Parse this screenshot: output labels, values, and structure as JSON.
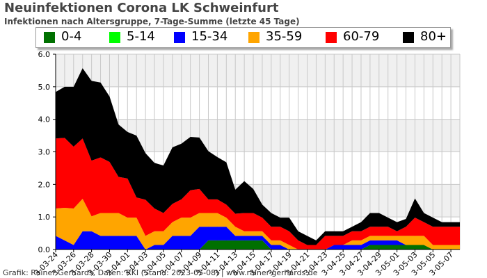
{
  "chart_data": {
    "type": "area",
    "stacked": true,
    "title": "Neuinfektionen Corona LK Schweinfurt",
    "subtitle": "Infektionen nach Altersgruppe, 7-Tage-Summe (letzte 45 Tage)",
    "credit": "Grafik: Rainer Gerhards, Daten: RKI (Stand: 2023-05-08) | www.rainer-gerhards.de",
    "ylim": [
      0,
      6
    ],
    "yticks": [
      "0.0",
      "1.0",
      "2.0",
      "3.0",
      "4.0",
      "5.0",
      "6.0"
    ],
    "ytick_values": [
      0,
      1,
      2,
      3,
      4,
      5,
      6
    ],
    "grid": true,
    "legend_position": "top",
    "x_labels": [
      "2023-03-24",
      "2023-03-26",
      "2023-03-28",
      "2023-03-30",
      "2023-04-01",
      "2023-04-03",
      "2023-04-05",
      "2023-04-07",
      "2023-04-09",
      "2023-04-11",
      "2023-04-13",
      "2023-04-15",
      "2023-04-17",
      "2023-04-19",
      "2023-04-21",
      "2023-04-23",
      "2023-04-25",
      "2023-04-27",
      "2023-04-29",
      "2023-05-01",
      "2023-05-03",
      "2023-05-05",
      "2023-05-07"
    ],
    "x_label_display": [
      "3-03-24",
      "3-03-26",
      "3-03-28",
      "3-03-30",
      "3-04-01",
      "3-04-03",
      "3-04-05",
      "3-04-07",
      "3-04-09",
      "3-04-11",
      "3-04-13",
      "3-04-15",
      "3-04-17",
      "3-04-19",
      "3-04-21",
      "3-04-23",
      "3-04-25",
      "3-04-27",
      "3-04-29",
      "3-05-01",
      "3-05-03",
      "3-05-05",
      "3-05-07"
    ],
    "x": [
      "2023-03-24",
      "2023-03-25",
      "2023-03-26",
      "2023-03-27",
      "2023-03-28",
      "2023-03-29",
      "2023-03-30",
      "2023-03-31",
      "2023-04-01",
      "2023-04-02",
      "2023-04-03",
      "2023-04-04",
      "2023-04-05",
      "2023-04-06",
      "2023-04-07",
      "2023-04-08",
      "2023-04-09",
      "2023-04-10",
      "2023-04-11",
      "2023-04-12",
      "2023-04-13",
      "2023-04-14",
      "2023-04-15",
      "2023-04-16",
      "2023-04-17",
      "2023-04-18",
      "2023-04-19",
      "2023-04-20",
      "2023-04-21",
      "2023-04-22",
      "2023-04-23",
      "2023-04-24",
      "2023-04-25",
      "2023-04-26",
      "2023-04-27",
      "2023-04-28",
      "2023-04-29",
      "2023-04-30",
      "2023-05-01",
      "2023-05-02",
      "2023-05-03",
      "2023-05-04",
      "2023-05-05",
      "2023-05-06",
      "2023-05-07",
      "2023-05-08"
    ],
    "series": [
      {
        "name": "0-4",
        "color": "#007000",
        "values": [
          0,
          0,
          0,
          0,
          0,
          0,
          0,
          0,
          0,
          0,
          0,
          0,
          0,
          0,
          0,
          0,
          0,
          0.28,
          0.28,
          0.28,
          0.28,
          0.28,
          0.28,
          0.28,
          0,
          0,
          0,
          0,
          0,
          0,
          0,
          0,
          0,
          0,
          0,
          0.14,
          0.14,
          0.14,
          0.14,
          0.14,
          0.14,
          0.14,
          0,
          0,
          0,
          0
        ]
      },
      {
        "name": "5-14",
        "color": "#00ff00",
        "values": [
          0,
          0,
          0,
          0,
          0,
          0,
          0,
          0,
          0,
          0,
          0,
          0,
          0,
          0,
          0,
          0,
          0,
          0,
          0,
          0,
          0,
          0,
          0,
          0,
          0,
          0,
          0,
          0,
          0,
          0,
          0,
          0,
          0,
          0,
          0,
          0,
          0,
          0,
          0,
          0,
          0,
          0,
          0,
          0,
          0,
          0
        ]
      },
      {
        "name": "15-34",
        "color": "#0000ff",
        "values": [
          0.42,
          0.28,
          0.14,
          0.56,
          0.56,
          0.42,
          0.42,
          0.42,
          0.42,
          0.42,
          0,
          0.14,
          0.14,
          0.42,
          0.42,
          0.42,
          0.7,
          0.42,
          0.42,
          0.42,
          0.14,
          0.14,
          0.14,
          0.14,
          0.14,
          0.14,
          0,
          0,
          0,
          0,
          0,
          0.14,
          0.14,
          0.14,
          0.14,
          0.14,
          0.14,
          0.14,
          0.14,
          0,
          0,
          0,
          0,
          0,
          0,
          0
        ]
      },
      {
        "name": "35-59",
        "color": "#ffa500",
        "values": [
          0.84,
          1.0,
          1.12,
          1.0,
          0.46,
          0.7,
          0.7,
          0.7,
          0.56,
          0.56,
          0.42,
          0.42,
          0.42,
          0.42,
          0.56,
          0.56,
          0.42,
          0.42,
          0.42,
          0.28,
          0.28,
          0.14,
          0.14,
          0.14,
          0.14,
          0.14,
          0.14,
          0,
          0,
          0,
          0,
          0,
          0,
          0.14,
          0.14,
          0.14,
          0.14,
          0.14,
          0.14,
          0.28,
          0.28,
          0.28,
          0.14,
          0.14,
          0.14,
          0.14
        ]
      },
      {
        "name": "60-79",
        "color": "#ff0000",
        "values": [
          2.15,
          2.15,
          1.9,
          1.85,
          1.71,
          1.71,
          1.57,
          1.11,
          1.2,
          0.62,
          1.11,
          0.7,
          0.56,
          0.56,
          0.56,
          0.84,
          0.74,
          0.42,
          0.42,
          0.4,
          0.4,
          0.56,
          0.56,
          0.42,
          0.42,
          0.42,
          0.42,
          0.28,
          0.14,
          0.14,
          0.42,
          0.28,
          0.28,
          0.28,
          0.28,
          0.28,
          0.28,
          0.28,
          0.14,
          0.28,
          0.56,
          0.42,
          0.56,
          0.56,
          0.56,
          0.56
        ]
      },
      {
        "name": "80+",
        "color": "#000000",
        "values": [
          1.43,
          1.57,
          1.84,
          2.16,
          2.45,
          2.3,
          2.01,
          1.61,
          1.43,
          1.9,
          1.43,
          1.4,
          1.46,
          1.74,
          1.71,
          1.64,
          1.58,
          1.48,
          1.3,
          1.3,
          0.74,
          0.98,
          0.74,
          0.4,
          0.42,
          0.28,
          0.42,
          0.28,
          0.28,
          0.14,
          0.14,
          0.14,
          0.14,
          0.14,
          0.28,
          0.42,
          0.42,
          0.28,
          0.28,
          0.24,
          0.59,
          0.28,
          0.28,
          0.14,
          0.14,
          0.14
        ]
      }
    ]
  }
}
